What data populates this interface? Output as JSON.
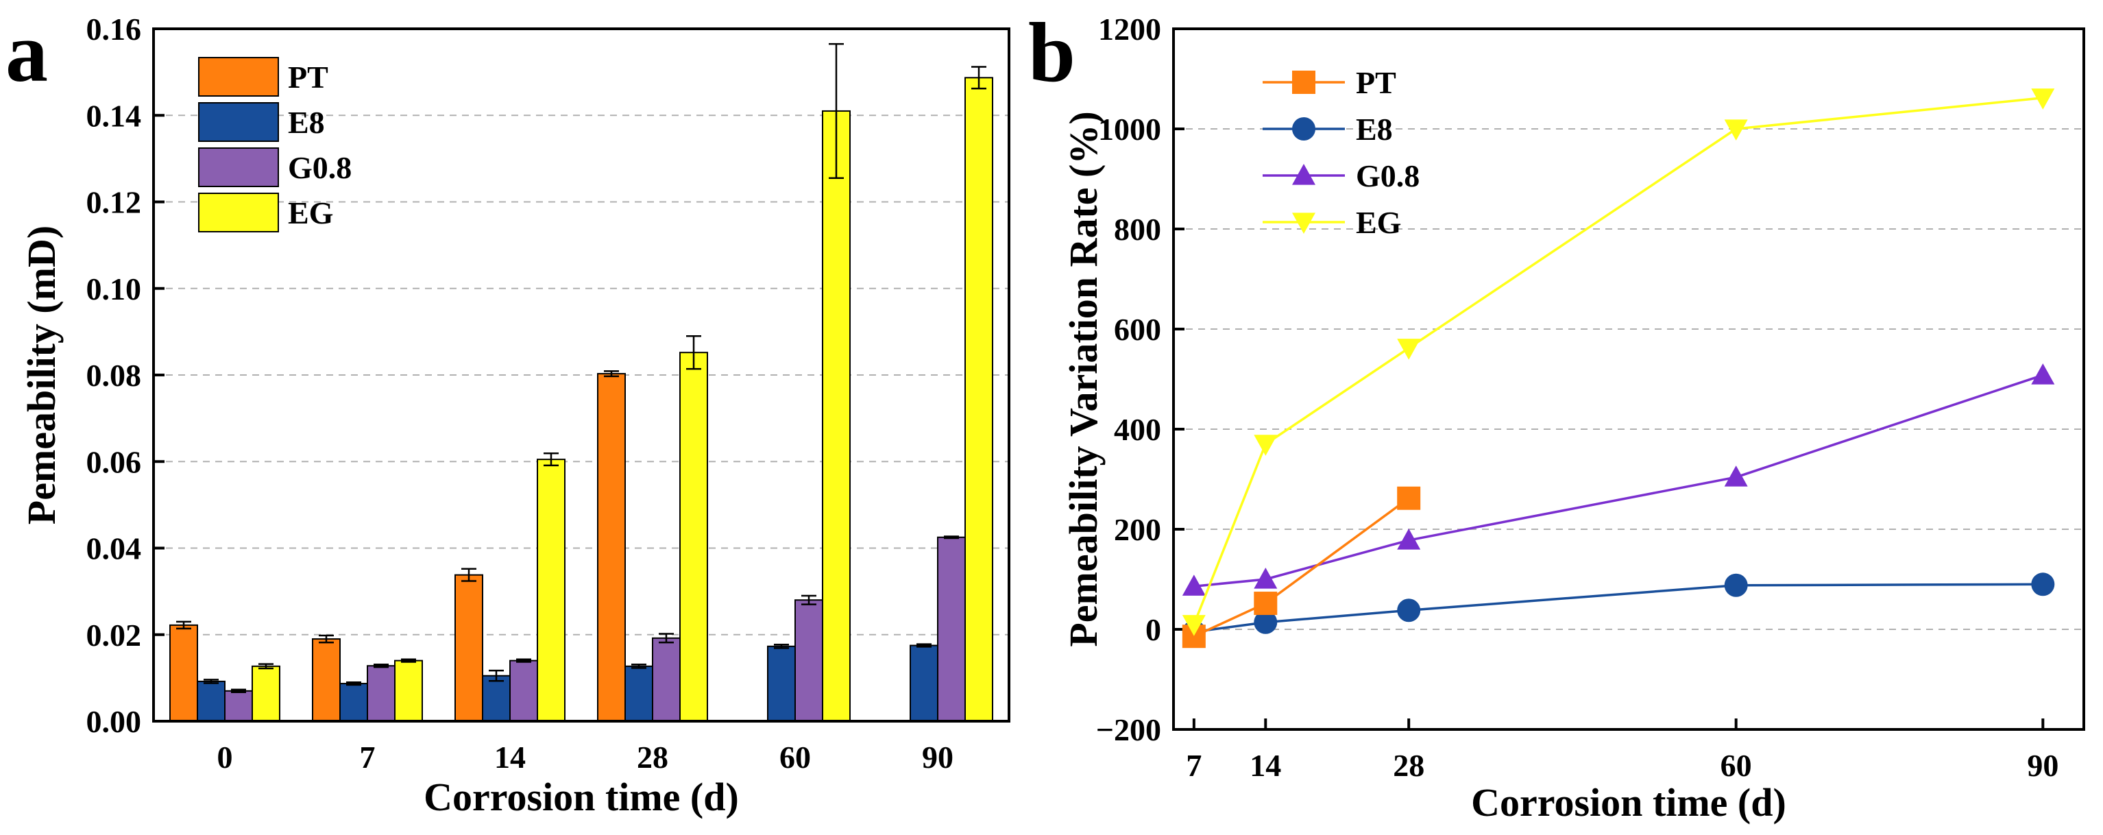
{
  "figure": {
    "panels": [
      "a",
      "b"
    ]
  },
  "colors": {
    "PT": "#ff7f0e",
    "E8": "#184e9a",
    "G0.8": "#8a5fb0",
    "EG": "#ffff1a",
    "G0.8_line": "#7a2fcf",
    "grid": "#b0b0b0"
  },
  "chart_data": [
    {
      "panel": "a",
      "type": "bar",
      "xlabel": "Corrosion time (d)",
      "ylabel": "Pemeability (mD)",
      "categories": [
        "0",
        "7",
        "14",
        "28",
        "60",
        "90"
      ],
      "ylim": [
        0,
        0.16
      ],
      "yticks": [
        "0.00",
        "0.02",
        "0.04",
        "0.06",
        "0.08",
        "0.10",
        "0.12",
        "0.14",
        "0.16"
      ],
      "grid": "horizontal dashed",
      "legend": "top-left",
      "series": [
        {
          "name": "PT",
          "values": [
            0.0222,
            0.019,
            0.0338,
            0.0803,
            null,
            null
          ],
          "errors": [
            0.0008,
            0.0008,
            0.0014,
            0.0006,
            null,
            null
          ]
        },
        {
          "name": "E8",
          "values": [
            0.0092,
            0.0087,
            0.0105,
            0.0127,
            0.0173,
            0.0175
          ],
          "errors": [
            0.0004,
            0.0003,
            0.0012,
            0.0004,
            0.0004,
            0.0003
          ]
        },
        {
          "name": "G0.8",
          "values": [
            0.007,
            0.0128,
            0.014,
            0.0192,
            0.028,
            0.0425
          ],
          "errors": [
            0.0003,
            0.0003,
            0.0003,
            0.001,
            0.001,
            0.0002
          ]
        },
        {
          "name": "EG",
          "values": [
            0.0127,
            0.014,
            0.0605,
            0.0852,
            0.141,
            0.1487
          ],
          "errors": [
            0.0005,
            0.0003,
            0.0014,
            0.0038,
            0.0155,
            0.0025
          ]
        }
      ]
    },
    {
      "panel": "b",
      "type": "line",
      "xlabel": "Corrosion time (d)",
      "ylabel": "Pemeability Variation Rate (%)",
      "xticks": [
        7,
        14,
        28,
        60,
        90
      ],
      "xlim": [
        5,
        94
      ],
      "ylim": [
        -200,
        1200
      ],
      "yticks": [
        "−200",
        "0",
        "200",
        "400",
        "600",
        "800",
        "1000",
        "1200"
      ],
      "grid": "horizontal dashed",
      "legend": "top-left",
      "series": [
        {
          "name": "PT",
          "marker": "square",
          "x": [
            7,
            14,
            28
          ],
          "y": [
            -14,
            52,
            262
          ]
        },
        {
          "name": "E8",
          "marker": "circle",
          "x": [
            7,
            14,
            28,
            60,
            90
          ],
          "y": [
            -5,
            14,
            38,
            88,
            90
          ]
        },
        {
          "name": "G0.8",
          "marker": "triangle-up",
          "x": [
            7,
            14,
            28,
            60,
            90
          ],
          "y": [
            86,
            100,
            178,
            304,
            508
          ]
        },
        {
          "name": "EG",
          "marker": "triangle-down",
          "x": [
            7,
            14,
            28,
            60,
            90
          ],
          "y": [
            10,
            370,
            562,
            1000,
            1062
          ]
        }
      ]
    }
  ]
}
